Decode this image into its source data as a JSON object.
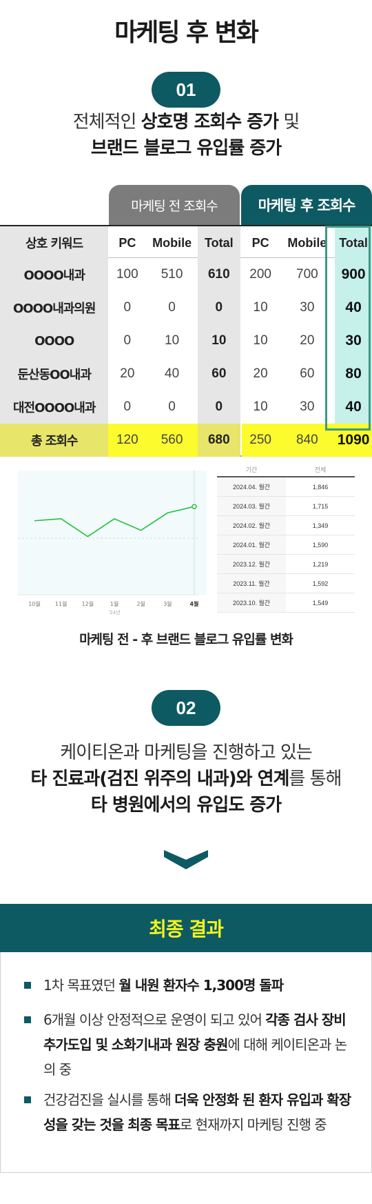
{
  "title": "마케팅 후 변화",
  "section1": {
    "number": "01",
    "line1_pre": "전체적인 ",
    "line1_bold": "상호명 조회수 증가",
    "line1_post": " 및",
    "line2_bold": "브랜드 블로그 유입률 증가"
  },
  "table": {
    "header_before": "마케팅 전 조회수",
    "header_after": "마케팅 후 조회수",
    "columns": [
      "상호 키워드",
      "PC",
      "Mobile",
      "Total",
      "PC",
      "Mobile",
      "Total"
    ],
    "rows": [
      {
        "keyword": "OOOO내과",
        "pc1": "100",
        "mo1": "510",
        "t1": "610",
        "pc2": "200",
        "mo2": "700",
        "t2": "900"
      },
      {
        "keyword": "OOOO내과의원",
        "pc1": "0",
        "mo1": "0",
        "t1": "0",
        "pc2": "10",
        "mo2": "30",
        "t2": "40"
      },
      {
        "keyword": "OOOO",
        "pc1": "0",
        "mo1": "10",
        "t1": "10",
        "pc2": "10",
        "mo2": "20",
        "t2": "30"
      },
      {
        "keyword": "둔산동OO내과",
        "pc1": "20",
        "mo1": "40",
        "t1": "60",
        "pc2": "20",
        "mo2": "60",
        "t2": "80"
      },
      {
        "keyword": "대전OOOO내과",
        "pc1": "0",
        "mo1": "0",
        "t1": "0",
        "pc2": "10",
        "mo2": "30",
        "t2": "40"
      }
    ],
    "total": {
      "keyword": "총 조회수",
      "pc1": "120",
      "mo1": "560",
      "t1": "680",
      "pc2": "250",
      "mo2": "840",
      "t2": "1090"
    }
  },
  "chart_data": {
    "type": "line",
    "categories": [
      "10월",
      "11월",
      "12월",
      "1월",
      "2월",
      "3월",
      "4월"
    ],
    "sub_label": "'24년",
    "values": [
      1549,
      1592,
      1219,
      1590,
      1349,
      1715,
      1846
    ],
    "color": "#22c03a"
  },
  "stats_table": {
    "headers": [
      "기간",
      "전체"
    ],
    "rows": [
      [
        "2024.04. 월간",
        "1,846"
      ],
      [
        "2024.03. 월간",
        "1,715"
      ],
      [
        "2024.02. 월간",
        "1,349"
      ],
      [
        "2024.01. 월간",
        "1,590"
      ],
      [
        "2023.12. 월간",
        "1,219"
      ],
      [
        "2023.11. 월간",
        "1,592"
      ],
      [
        "2023.10. 월간",
        "1,549"
      ]
    ]
  },
  "caption": "마케팅 전 - 후 브랜드 블로그 유입률 변화",
  "section2": {
    "number": "02",
    "line1": "케이티온과 마케팅을 진행하고 있는",
    "line2_bold1": "타 진료과(검진 위주의 내과)",
    "line2_mid": "와 ",
    "line2_bold2": "연계",
    "line2_post": "를 통해",
    "line3_bold": "타 병원에서의 유입도 증가"
  },
  "result": {
    "title": "최종 결과",
    "b1_pre": "1차 목표였던 ",
    "b1_bold": "월 내원 환자수 1,300명 돌파",
    "b2_pre": "6개월 이상 안정적으로 운영이 되고 있어 ",
    "b2_bold": "각종 검사 장비 추가도입 및 소화기내과 원장 충원",
    "b2_post": "에 대해 케이티온과 논의 중",
    "b3_pre": "건강검진을 실시를 통해 ",
    "b3_bold": "더욱 안정화 된 환자 유입과 확장성을 갖는 것을 최종 목표",
    "b3_post": "로 현재까지 마케팅 진행 중"
  },
  "colors": {
    "brand": "#0d5a63",
    "highlight": "#fbfb2e",
    "accent_green": "#22c03a",
    "result_title": "#f4f41e"
  }
}
